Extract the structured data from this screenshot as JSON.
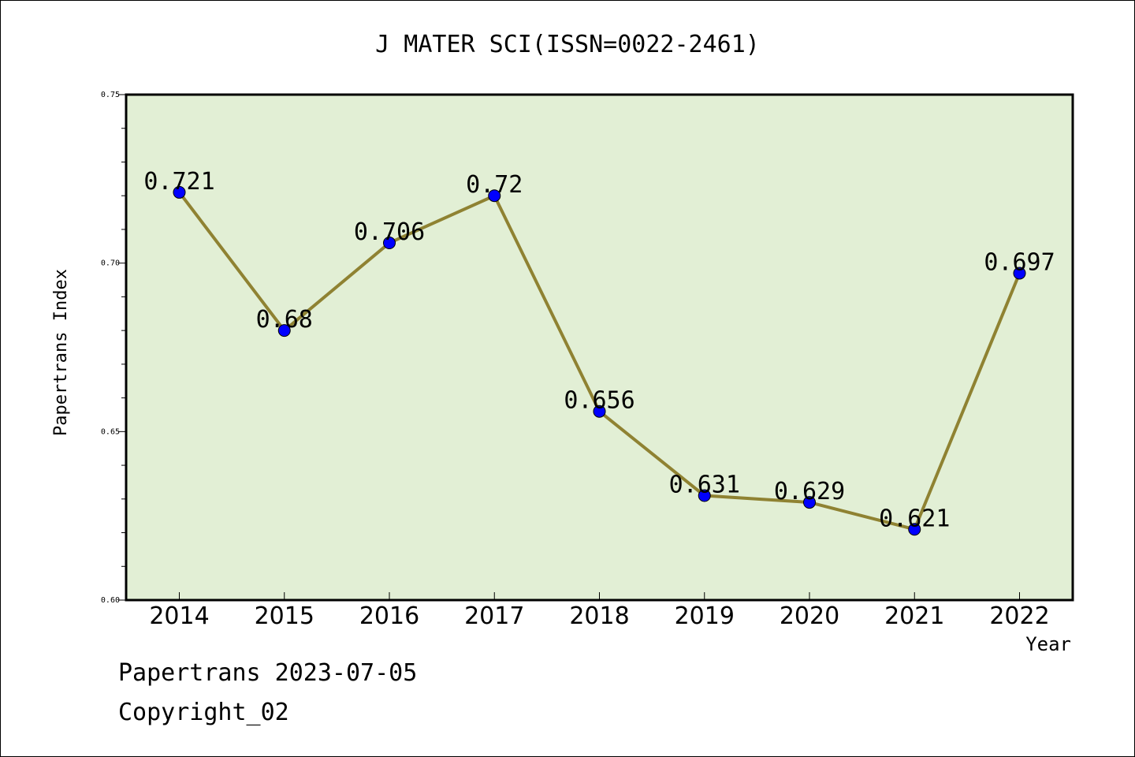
{
  "chart_data": {
    "type": "line",
    "title": "J MATER SCI(ISSN=0022-2461)",
    "xlabel": "Year",
    "ylabel": "Papertrans Index",
    "categories": [
      "2014",
      "2015",
      "2016",
      "2017",
      "2018",
      "2019",
      "2020",
      "2021",
      "2022"
    ],
    "values": [
      0.721,
      0.68,
      0.706,
      0.72,
      0.656,
      0.631,
      0.629,
      0.621,
      0.697
    ],
    "data_labels": [
      "0.721",
      "0.68",
      "0.706",
      "0.72",
      "0.656",
      "0.631",
      "0.629",
      "0.621",
      "0.697"
    ],
    "ylim": [
      0.6,
      0.75
    ],
    "yticks": [
      "0.60",
      "0.65",
      "0.70",
      "0.75"
    ],
    "grid": false,
    "colors": {
      "plot_background": "#e2efd5",
      "line": "#8f8232",
      "marker": "#0000ff"
    }
  },
  "footer": {
    "line1": "Papertrans 2023-07-05",
    "line2": "Copyright_02"
  }
}
